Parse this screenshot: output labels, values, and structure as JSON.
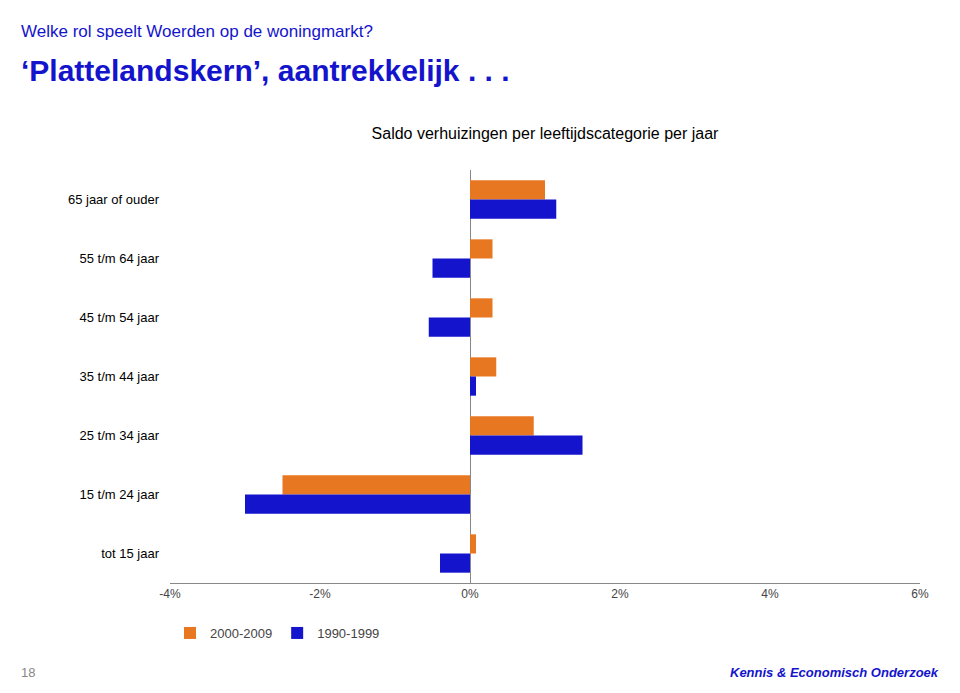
{
  "chart_data": {
    "type": "bar",
    "orientation": "horizontal",
    "title": "Saldo verhuizingen per leeftijdscategorie per jaar",
    "annotations": [
      "Welke rol speelt Woerden op de woningmarkt?",
      "‘Plattelandskern’, aantrekkelijk . . .",
      "18",
      "Kennis & Economisch Onderzoek"
    ],
    "categories": [
      "65 jaar of ouder",
      "55 t/m 64 jaar",
      "45 t/m 54 jaar",
      "35 t/m 44 jaar",
      "25 t/m 34 jaar",
      "15 t/m 24 jaar",
      "tot 15 jaar"
    ],
    "series": [
      {
        "name": "2000-2009",
        "color": "#E87722",
        "values": [
          1.0,
          0.3,
          0.3,
          0.35,
          0.85,
          -2.5,
          0.08
        ]
      },
      {
        "name": "1990-1999",
        "color": "#1414CC",
        "values": [
          1.15,
          -0.5,
          -0.55,
          0.08,
          1.5,
          -3.0,
          -0.4
        ]
      }
    ],
    "xlim": [
      -4,
      6
    ],
    "xticks": [
      {
        "value": -4,
        "label": "-4%"
      },
      {
        "value": -2,
        "label": "-2%"
      },
      {
        "value": 0,
        "label": "0%"
      },
      {
        "value": 2,
        "label": "2%"
      },
      {
        "value": 4,
        "label": "4%"
      },
      {
        "value": 6,
        "label": "6%"
      }
    ],
    "grid": false,
    "legend": "bottom"
  }
}
